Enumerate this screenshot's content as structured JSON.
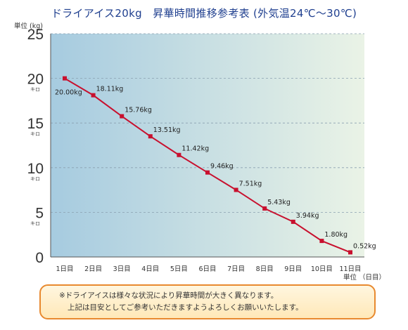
{
  "title": "ドライアイス20kg　昇華時間推移参考表 (外気温24℃〜30℃)",
  "chart_data": {
    "type": "line",
    "ylabel": "単位 (kg)",
    "xlabel": "単位 （日目）",
    "ylim": [
      0,
      25
    ],
    "yticks": [
      0,
      5,
      10,
      15,
      20,
      25
    ],
    "ytick_sublabel": "キロ",
    "grid": true,
    "categories": [
      "1日目",
      "2日目",
      "3日目",
      "4日目",
      "5日目",
      "6日目",
      "7日目",
      "8日目",
      "9日目",
      "10日目",
      "11日目"
    ],
    "values": [
      20.0,
      18.11,
      15.76,
      13.51,
      11.42,
      9.46,
      7.51,
      5.43,
      3.94,
      1.8,
      0.52
    ],
    "data_labels": [
      "20.00kg",
      "18.11kg",
      "15.76kg",
      "13.51kg",
      "11.42kg",
      "9.46kg",
      "7.51kg",
      "5.43kg",
      "3.94kg",
      "1.80kg",
      "0.52kg"
    ],
    "line_color": "#c8102e"
  },
  "note": {
    "line1": "※ドライアイスは様々な状況により昇華時間が大きく異なります。",
    "line2": "上記は目安としてご参考いただきますようよろしくお願いいたします。"
  }
}
